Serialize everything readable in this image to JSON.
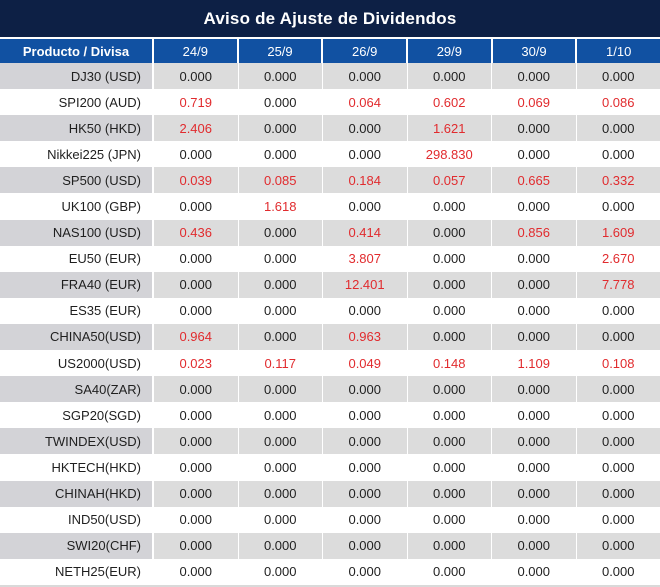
{
  "title": "Aviso de Ajuste de Dividendos",
  "colors": {
    "title_bg": "#0d2045",
    "header_bg": "#1151a2",
    "row_stripe_label": "#d3d3d7",
    "row_stripe_value": "#dcdcdc",
    "value_red": "#e12b2e",
    "value_black": "#1f1f1f",
    "header_text": "#ffffff"
  },
  "chart_data": {
    "type": "table",
    "title": "Aviso de Ajuste de Dividendos",
    "columns": [
      "Producto / Divisa",
      "24/9",
      "25/9",
      "26/9",
      "29/9",
      "30/9",
      "1/10"
    ],
    "rows": [
      {
        "product": "DJ30 (USD)",
        "values": [
          "0.000",
          "0.000",
          "0.000",
          "0.000",
          "0.000",
          "0.000"
        ]
      },
      {
        "product": "SPI200 (AUD)",
        "values": [
          "0.719",
          "0.000",
          "0.064",
          "0.602",
          "0.069",
          "0.086"
        ]
      },
      {
        "product": "HK50 (HKD)",
        "values": [
          "2.406",
          "0.000",
          "0.000",
          "1.621",
          "0.000",
          "0.000"
        ]
      },
      {
        "product": "Nikkei225 (JPN)",
        "values": [
          "0.000",
          "0.000",
          "0.000",
          "298.830",
          "0.000",
          "0.000"
        ]
      },
      {
        "product": "SP500 (USD)",
        "values": [
          "0.039",
          "0.085",
          "0.184",
          "0.057",
          "0.665",
          "0.332"
        ]
      },
      {
        "product": "UK100 (GBP)",
        "values": [
          "0.000",
          "1.618",
          "0.000",
          "0.000",
          "0.000",
          "0.000"
        ]
      },
      {
        "product": "NAS100 (USD)",
        "values": [
          "0.436",
          "0.000",
          "0.414",
          "0.000",
          "0.856",
          "1.609"
        ]
      },
      {
        "product": "EU50 (EUR)",
        "values": [
          "0.000",
          "0.000",
          "3.807",
          "0.000",
          "0.000",
          "2.670"
        ]
      },
      {
        "product": "FRA40 (EUR)",
        "values": [
          "0.000",
          "0.000",
          "12.401",
          "0.000",
          "0.000",
          "7.778"
        ]
      },
      {
        "product": "ES35 (EUR)",
        "values": [
          "0.000",
          "0.000",
          "0.000",
          "0.000",
          "0.000",
          "0.000"
        ]
      },
      {
        "product": "CHINA50(USD)",
        "values": [
          "0.964",
          "0.000",
          "0.963",
          "0.000",
          "0.000",
          "0.000"
        ]
      },
      {
        "product": "US2000(USD)",
        "values": [
          "0.023",
          "0.117",
          "0.049",
          "0.148",
          "1.109",
          "0.108"
        ]
      },
      {
        "product": "SA40(ZAR)",
        "values": [
          "0.000",
          "0.000",
          "0.000",
          "0.000",
          "0.000",
          "0.000"
        ]
      },
      {
        "product": "SGP20(SGD)",
        "values": [
          "0.000",
          "0.000",
          "0.000",
          "0.000",
          "0.000",
          "0.000"
        ]
      },
      {
        "product": "TWINDEX(USD)",
        "values": [
          "0.000",
          "0.000",
          "0.000",
          "0.000",
          "0.000",
          "0.000"
        ]
      },
      {
        "product": "HKTECH(HKD)",
        "values": [
          "0.000",
          "0.000",
          "0.000",
          "0.000",
          "0.000",
          "0.000"
        ]
      },
      {
        "product": "CHINAH(HKD)",
        "values": [
          "0.000",
          "0.000",
          "0.000",
          "0.000",
          "0.000",
          "0.000"
        ]
      },
      {
        "product": "IND50(USD)",
        "values": [
          "0.000",
          "0.000",
          "0.000",
          "0.000",
          "0.000",
          "0.000"
        ]
      },
      {
        "product": "SWI20(CHF)",
        "values": [
          "0.000",
          "0.000",
          "0.000",
          "0.000",
          "0.000",
          "0.000"
        ]
      },
      {
        "product": "NETH25(EUR)",
        "values": [
          "0.000",
          "0.000",
          "0.000",
          "0.000",
          "0.000",
          "0.000"
        ]
      }
    ],
    "value_color_rule": "non-zero values rendered red, zero values rendered black",
    "row_stripe_rule": "odd rows (1st, 3rd, ...) gray, even rows white"
  }
}
